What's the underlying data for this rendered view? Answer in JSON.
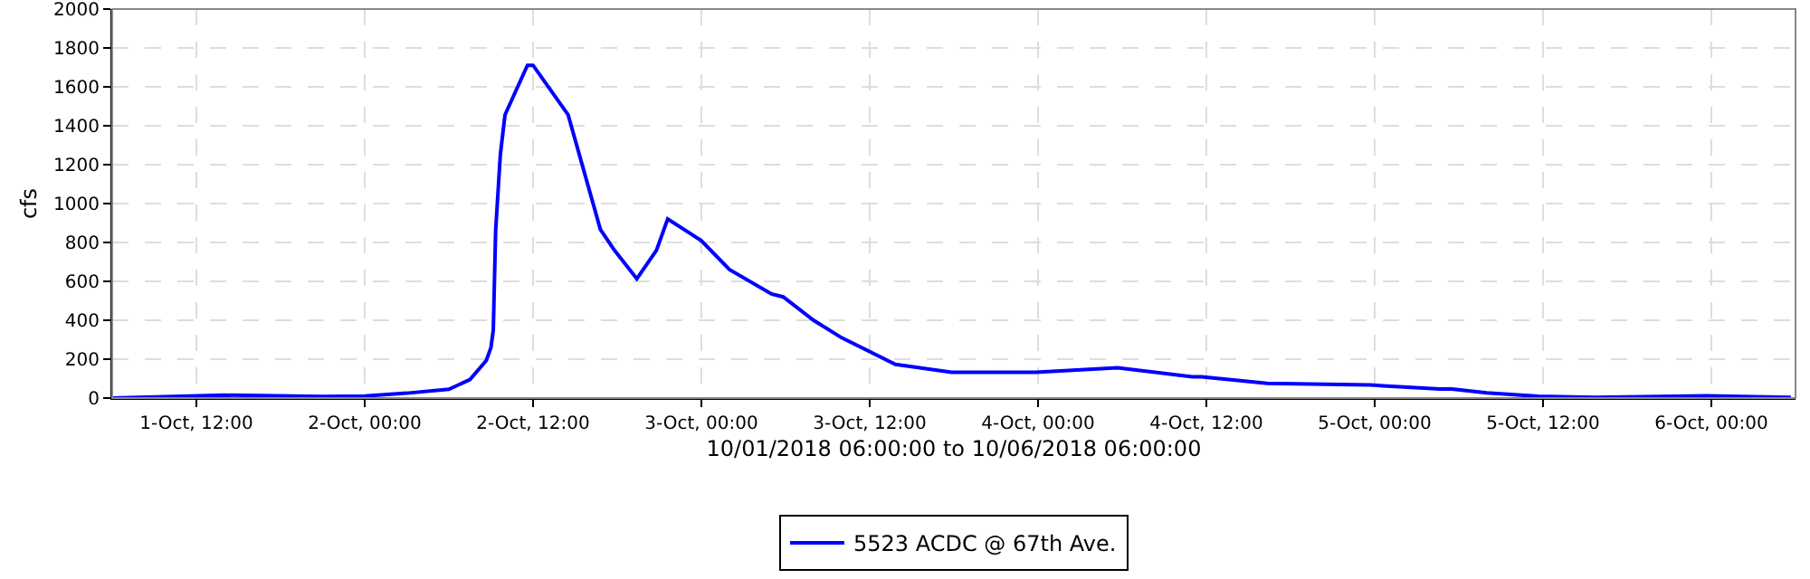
{
  "chart_data": {
    "type": "line",
    "xlabel": "10/01/2018 06:00:00 to 10/06/2018 06:00:00",
    "ylabel": "cfs",
    "x": [
      "2018-10-01T06:00",
      "2018-10-01T14:00",
      "2018-10-01T21:00",
      "2018-10-02T00:00",
      "2018-10-02T03:00",
      "2018-10-02T06:00",
      "2018-10-02T07:30",
      "2018-10-02T08:40",
      "2018-10-02T09:00",
      "2018-10-02T09:10",
      "2018-10-02T09:20",
      "2018-10-02T09:40",
      "2018-10-02T10:00",
      "2018-10-02T11:36",
      "2018-10-02T12:00",
      "2018-10-02T14:30",
      "2018-10-02T16:48",
      "2018-10-02T17:48",
      "2018-10-02T19:24",
      "2018-10-02T20:48",
      "2018-10-02T21:36",
      "2018-10-03T00:00",
      "2018-10-03T02:00",
      "2018-10-03T05:00",
      "2018-10-03T05:50",
      "2018-10-03T08:00",
      "2018-10-03T10:00",
      "2018-10-03T13:50",
      "2018-10-03T17:50",
      "2018-10-03T23:50",
      "2018-10-04T05:40",
      "2018-10-04T11:00",
      "2018-10-04T11:40",
      "2018-10-04T16:20",
      "2018-10-04T23:40",
      "2018-10-05T04:40",
      "2018-10-05T05:30",
      "2018-10-05T08:00",
      "2018-10-05T11:40",
      "2018-10-05T15:40",
      "2018-10-05T23:40",
      "2018-10-06T05:40"
    ],
    "series": [
      {
        "name": "5523 ACDC @ 67th Ave.",
        "color": "#0000ff",
        "values": [
          0,
          15,
          8,
          10,
          25,
          45,
          95,
          193,
          260,
          350,
          860,
          1250,
          1456,
          1711,
          1711,
          1456,
          867,
          760,
          613,
          760,
          921,
          809,
          661,
          535,
          520,
          400,
          310,
          173,
          133,
          133,
          156,
          109,
          109,
          76,
          67,
          47,
          47,
          27,
          9,
          3,
          12,
          3
        ]
      }
    ],
    "xlim": [
      "2018-10-01T06:00",
      "2018-10-06T06:00"
    ],
    "xticks": [
      {
        "value": "2018-10-01T12:00",
        "label": "1-Oct, 12:00"
      },
      {
        "value": "2018-10-02T00:00",
        "label": "2-Oct, 00:00"
      },
      {
        "value": "2018-10-02T12:00",
        "label": "2-Oct, 12:00"
      },
      {
        "value": "2018-10-03T00:00",
        "label": "3-Oct, 00:00"
      },
      {
        "value": "2018-10-03T12:00",
        "label": "3-Oct, 12:00"
      },
      {
        "value": "2018-10-04T00:00",
        "label": "4-Oct, 00:00"
      },
      {
        "value": "2018-10-04T12:00",
        "label": "4-Oct, 12:00"
      },
      {
        "value": "2018-10-05T00:00",
        "label": "5-Oct, 00:00"
      },
      {
        "value": "2018-10-05T12:00",
        "label": "5-Oct, 12:00"
      },
      {
        "value": "2018-10-06T00:00",
        "label": "6-Oct, 00:00"
      }
    ],
    "ylim": [
      0,
      2000
    ],
    "yticks": [
      0,
      200,
      400,
      600,
      800,
      1000,
      1200,
      1400,
      1600,
      1800,
      2000
    ],
    "grid": true,
    "legend": "bottom",
    "marker": "none",
    "line_style": "solid"
  }
}
